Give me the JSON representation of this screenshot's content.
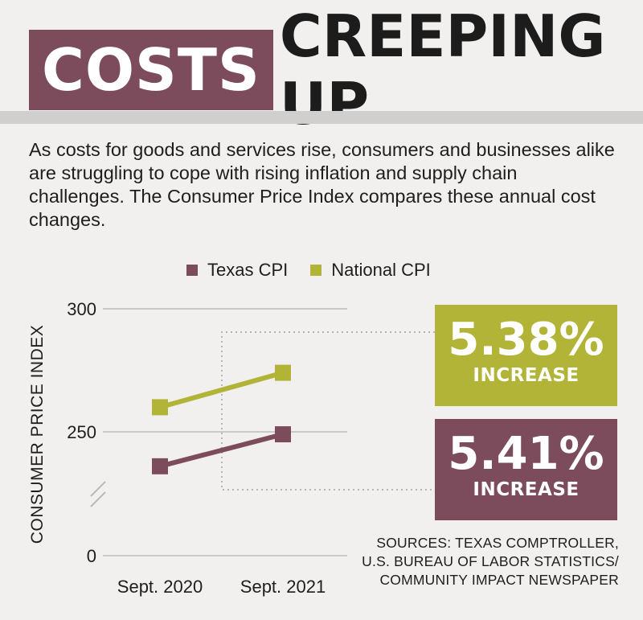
{
  "title": {
    "highlight": "COSTS",
    "rest": "CREEPING UP"
  },
  "intro": "As costs for goods and services rise, consumers and businesses alike are struggling to cope with rising inflation and supply chain challenges. The Consumer Price Index compares these annual cost changes.",
  "colors": {
    "texas": "#7d4c5c",
    "national": "#b1b437",
    "grid": "#c9c9c9"
  },
  "chart_data": {
    "type": "line",
    "ylabel": "CONSUMER PRICE INDEX",
    "categories": [
      "Sept. 2020",
      "Sept. 2021"
    ],
    "series": [
      {
        "name": "Texas CPI",
        "values": [
          236,
          249
        ]
      },
      {
        "name": "National CPI",
        "values": [
          260,
          274
        ]
      }
    ],
    "y_ticks": [
      0,
      250,
      300
    ],
    "ylim": [
      0,
      300
    ],
    "axis_break": true,
    "grid": true,
    "legend": "top"
  },
  "callouts": [
    {
      "value": "5.38%",
      "label": "INCREASE",
      "series": "National CPI"
    },
    {
      "value": "5.41%",
      "label": "INCREASE",
      "series": "Texas CPI"
    }
  ],
  "sources": [
    "SOURCES: TEXAS COMPTROLLER,",
    "U.S. BUREAU OF LABOR STATISTICS/",
    "COMMUNITY IMPACT NEWSPAPER"
  ]
}
